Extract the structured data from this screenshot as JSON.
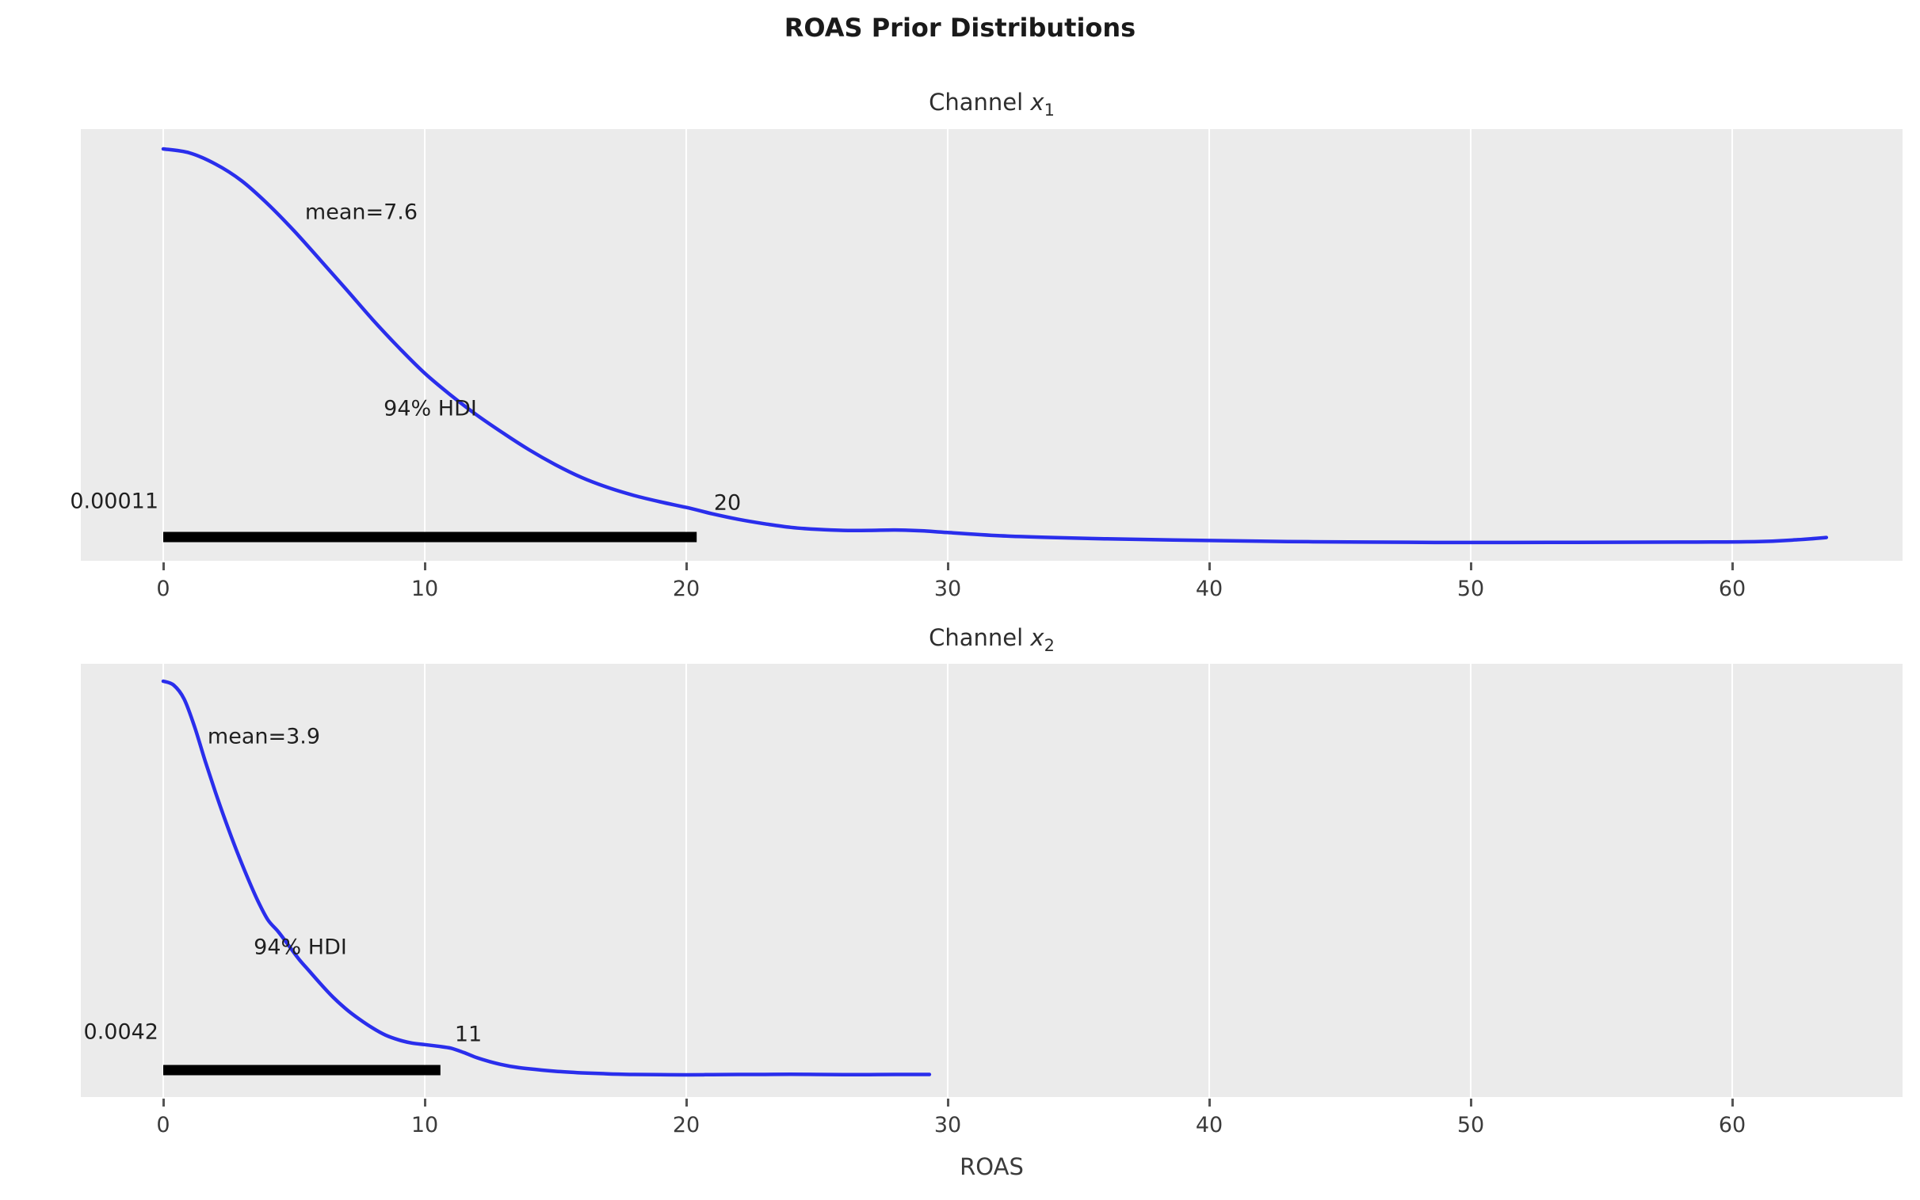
{
  "colors": {
    "curve": "#2a2eec",
    "axes_bg": "#ebebeb",
    "grid": "#ffffff",
    "hdi_bar": "#000000",
    "text": "#1f1f1f",
    "tick_text": "#3b3b3b"
  },
  "chart_data": {
    "type": "kde",
    "title": "ROAS Prior Distributions",
    "xlabel": "ROAS",
    "grid": "vertical white gridlines on gray panel",
    "legend": "none",
    "xlim": [
      -3.15,
      66.5
    ],
    "x_ticks": [
      {
        "value": 0,
        "label": "0"
      },
      {
        "value": 10,
        "label": "10"
      },
      {
        "value": 20,
        "label": "20"
      },
      {
        "value": 30,
        "label": "30"
      },
      {
        "value": 40,
        "label": "40"
      },
      {
        "value": 50,
        "label": "50"
      },
      {
        "value": 60,
        "label": "60"
      }
    ],
    "subplots": [
      {
        "title": "Channel x_1",
        "title_prefix": "Channel",
        "var": "x",
        "var_sub": "1",
        "mean": 7.6,
        "mean_label": "mean=7.6",
        "hdi_prob": 0.94,
        "hdi_label": "94% HDI",
        "hdi_lower": 0.00011,
        "hdi_upper": 20,
        "hdi_lower_label": "0.00011",
        "hdi_upper_label": "20",
        "hdi_bar_span": [
          0,
          20.4
        ],
        "kde_points": [
          [
            0,
            1.0
          ],
          [
            1,
            0.99
          ],
          [
            2,
            0.962
          ],
          [
            3,
            0.92
          ],
          [
            4,
            0.862
          ],
          [
            5,
            0.795
          ],
          [
            6,
            0.722
          ],
          [
            7,
            0.648
          ],
          [
            8,
            0.573
          ],
          [
            9,
            0.503
          ],
          [
            10,
            0.438
          ],
          [
            11,
            0.383
          ],
          [
            12,
            0.333
          ],
          [
            13,
            0.288
          ],
          [
            14,
            0.246
          ],
          [
            15,
            0.209
          ],
          [
            16,
            0.177
          ],
          [
            17,
            0.152
          ],
          [
            18,
            0.132
          ],
          [
            19,
            0.116
          ],
          [
            20,
            0.102
          ],
          [
            21,
            0.086
          ],
          [
            22,
            0.072
          ],
          [
            23,
            0.061
          ],
          [
            24,
            0.052
          ],
          [
            25,
            0.047
          ],
          [
            26,
            0.0445
          ],
          [
            27,
            0.0445
          ],
          [
            28,
            0.0455
          ],
          [
            29,
            0.0435
          ],
          [
            30,
            0.039
          ],
          [
            32,
            0.031
          ],
          [
            34,
            0.0265
          ],
          [
            36,
            0.0235
          ],
          [
            38,
            0.021
          ],
          [
            40,
            0.019
          ],
          [
            43,
            0.0165
          ],
          [
            46,
            0.015
          ],
          [
            50,
            0.014
          ],
          [
            54,
            0.0145
          ],
          [
            58,
            0.015
          ],
          [
            61,
            0.0165
          ],
          [
            62.5,
            0.021
          ],
          [
            63.6,
            0.0265
          ]
        ]
      },
      {
        "title": "Channel x_2",
        "title_prefix": "Channel",
        "var": "x",
        "var_sub": "2",
        "mean": 3.9,
        "mean_label": "mean=3.9",
        "hdi_prob": 0.94,
        "hdi_label": "94% HDI",
        "hdi_lower": 0.0042,
        "hdi_upper": 11,
        "hdi_lower_label": "0.0042",
        "hdi_upper_label": "11",
        "hdi_bar_span": [
          0,
          10.6
        ],
        "kde_points": [
          [
            0,
            1.0
          ],
          [
            0.4,
            0.99
          ],
          [
            0.8,
            0.955
          ],
          [
            1.2,
            0.885
          ],
          [
            1.6,
            0.8
          ],
          [
            2,
            0.72
          ],
          [
            2.4,
            0.645
          ],
          [
            2.8,
            0.575
          ],
          [
            3.2,
            0.51
          ],
          [
            3.6,
            0.45
          ],
          [
            4,
            0.4
          ],
          [
            4.4,
            0.37
          ],
          [
            4.8,
            0.335
          ],
          [
            5.2,
            0.3
          ],
          [
            5.6,
            0.27
          ],
          [
            6,
            0.24
          ],
          [
            6.5,
            0.205
          ],
          [
            7,
            0.175
          ],
          [
            7.5,
            0.15
          ],
          [
            8,
            0.128
          ],
          [
            8.5,
            0.11
          ],
          [
            9,
            0.098
          ],
          [
            9.5,
            0.09
          ],
          [
            10,
            0.086
          ],
          [
            10.5,
            0.082
          ],
          [
            11,
            0.077
          ],
          [
            11.5,
            0.066
          ],
          [
            12,
            0.053
          ],
          [
            12.5,
            0.043
          ],
          [
            13,
            0.035
          ],
          [
            13.5,
            0.029
          ],
          [
            14,
            0.025
          ],
          [
            15,
            0.019
          ],
          [
            16,
            0.015
          ],
          [
            17,
            0.0125
          ],
          [
            18,
            0.011
          ],
          [
            19,
            0.0105
          ],
          [
            20,
            0.01
          ],
          [
            21,
            0.0105
          ],
          [
            22,
            0.011
          ],
          [
            23,
            0.011
          ],
          [
            24,
            0.0115
          ],
          [
            25,
            0.011
          ],
          [
            26,
            0.0105
          ],
          [
            27,
            0.0105
          ],
          [
            28,
            0.011
          ],
          [
            29.3,
            0.011
          ]
        ]
      }
    ]
  }
}
